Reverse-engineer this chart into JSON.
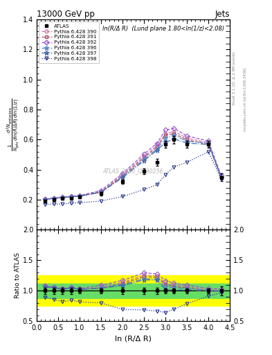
{
  "title_top": "13000 GeV pp",
  "title_right": "Jets",
  "annotation": "ln(R/Δ R)  (Lund plane 1.80<ln(1/z)<2.08)",
  "watermark": "ATLAS_2020_I1790256",
  "rivet_text": "Rivet 3.1.10; ≥ 2.9M events",
  "mcplots_text": "mcplots.cern.ch [arXiv:1306.3436]",
  "xlabel": "ln (R/Δ R)",
  "ylabel_main": "$\\frac{1}{N_{\\mathrm{jets}}}\\frac{d^{2}N_{\\mathrm{emissions}}}{d\\ln(R/\\Delta R)\\,d\\ln(1/z)}$",
  "ylabel_ratio": "Ratio to ATLAS",
  "xlim": [
    0,
    4.5
  ],
  "ylim_main": [
    0.0,
    1.4
  ],
  "ylim_ratio": [
    0.5,
    2.0
  ],
  "yticks_main": [
    0.2,
    0.4,
    0.6,
    0.8,
    1.0,
    1.2,
    1.4
  ],
  "yticks_ratio": [
    0.5,
    1.0,
    1.5,
    2.0
  ],
  "atlas_x": [
    0.2,
    0.4,
    0.6,
    0.8,
    1.0,
    1.5,
    2.0,
    2.5,
    2.8,
    3.0,
    3.2,
    3.5,
    4.0,
    4.3
  ],
  "atlas_y": [
    0.19,
    0.2,
    0.21,
    0.21,
    0.22,
    0.24,
    0.32,
    0.39,
    0.45,
    0.57,
    0.6,
    0.57,
    0.57,
    0.35
  ],
  "atlas_yerr": [
    0.01,
    0.01,
    0.01,
    0.01,
    0.01,
    0.01,
    0.015,
    0.02,
    0.025,
    0.025,
    0.025,
    0.025,
    0.025,
    0.025
  ],
  "mc_x": [
    0.2,
    0.4,
    0.6,
    0.8,
    1.0,
    1.5,
    2.0,
    2.5,
    2.8,
    3.0,
    3.2,
    3.5,
    4.0,
    4.3
  ],
  "py390_y": [
    0.205,
    0.21,
    0.215,
    0.22,
    0.225,
    0.255,
    0.365,
    0.49,
    0.56,
    0.64,
    0.655,
    0.61,
    0.58,
    0.35
  ],
  "py391_y": [
    0.205,
    0.21,
    0.215,
    0.22,
    0.225,
    0.25,
    0.358,
    0.48,
    0.55,
    0.63,
    0.64,
    0.6,
    0.57,
    0.348
  ],
  "py392_y": [
    0.205,
    0.212,
    0.218,
    0.222,
    0.228,
    0.262,
    0.375,
    0.505,
    0.575,
    0.665,
    0.675,
    0.625,
    0.592,
    0.36
  ],
  "py396_y": [
    0.202,
    0.21,
    0.215,
    0.22,
    0.225,
    0.252,
    0.352,
    0.468,
    0.538,
    0.61,
    0.63,
    0.59,
    0.578,
    0.35
  ],
  "py397_y": [
    0.202,
    0.21,
    0.215,
    0.22,
    0.225,
    0.25,
    0.348,
    0.46,
    0.53,
    0.582,
    0.605,
    0.578,
    0.568,
    0.348
  ],
  "py398_y": [
    0.17,
    0.172,
    0.172,
    0.178,
    0.18,
    0.192,
    0.222,
    0.268,
    0.3,
    0.368,
    0.418,
    0.45,
    0.52,
    0.338
  ],
  "py390_color": "#cc77aa",
  "py391_color": "#aa5566",
  "py392_color": "#9955cc",
  "py396_color": "#5588cc",
  "py397_color": "#4466aa",
  "py398_color": "#223388",
  "py390_marker": "o",
  "py391_marker": "s",
  "py392_marker": "D",
  "py396_marker": "*",
  "py397_marker": "*",
  "py398_marker": "v",
  "py390_ls": "--",
  "py391_ls": "--",
  "py392_ls": "--",
  "py396_ls": "-.",
  "py397_ls": "-.",
  "py398_ls": ":",
  "green_band_lo": 0.88,
  "green_band_hi": 1.12,
  "yellow_band_lo": 0.75,
  "yellow_band_hi": 1.25
}
